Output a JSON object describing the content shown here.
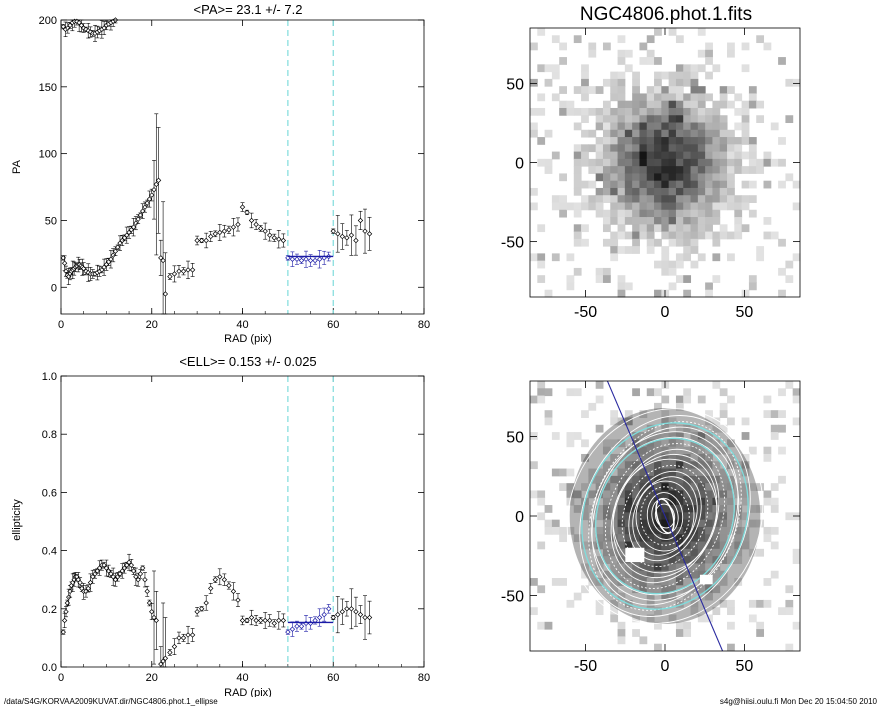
{
  "footer": {
    "path": "/data/S4G/KORVAA2009KUVAT.dir/NGC4806.phot.1_ellipse",
    "stamp": "s4g@hiisi.oulu.fi  Mon Dec 20 15:04:50 2010"
  },
  "colors": {
    "ink": "#000000",
    "cyan": "#7fdcdc",
    "blue": "#1a1aa6",
    "axis": "#000000"
  },
  "chart_data": [
    {
      "id": "pa",
      "type": "scatter",
      "title": "<PA>=  23.1 +/-   7.2",
      "xlabel": "RAD (pix)",
      "ylabel": "PA",
      "xlim": [
        0,
        80
      ],
      "ylim": [
        -20,
        200
      ],
      "xticks": [
        0,
        20,
        40,
        60,
        80
      ],
      "yticks": [
        0,
        50,
        100,
        150,
        200
      ],
      "vlines": [
        50,
        60
      ],
      "mean_line": {
        "x": [
          50,
          60
        ],
        "y": 23.1
      },
      "series": [
        {
          "name": "PA-low",
          "x": [
            0.5,
            0.8,
            1.1,
            1.4,
            1.7,
            2.0,
            2.3,
            2.6,
            2.9,
            3.2,
            3.5,
            3.8,
            4.1,
            4.4,
            4.7,
            5.0,
            5.5,
            6.0,
            6.5,
            7.0,
            7.5,
            8.0,
            8.5,
            9.0,
            9.5,
            10.0,
            10.5,
            11.0,
            11.5,
            12.0,
            12.5,
            13.0,
            13.5,
            14.0,
            14.5,
            15.0,
            15.5,
            16.0,
            16.5,
            17.0,
            17.5,
            18.0,
            18.5,
            19.0,
            19.5,
            20.0,
            20.5,
            21.0,
            21.5
          ],
          "y": [
            22,
            18,
            12,
            9,
            8,
            10,
            12,
            13,
            14,
            15,
            16,
            17,
            17,
            16,
            15,
            14,
            12,
            11,
            10,
            10,
            10,
            11,
            12,
            13,
            15,
            17,
            19,
            21,
            24,
            27,
            30,
            33,
            35,
            37,
            39,
            41,
            43,
            45,
            48,
            51,
            54,
            57,
            60,
            63,
            66,
            69,
            73,
            77,
            80
          ]
        },
        {
          "name": "PA-high",
          "x": [
            0.5,
            1,
            1.5,
            2,
            2.5,
            3,
            3.5,
            4,
            4.5,
            5,
            5.5,
            6,
            6.5,
            7,
            7.5,
            8,
            8.5,
            9,
            9.5,
            10,
            10.5,
            11,
            11.5,
            12
          ],
          "y": [
            195,
            193,
            194,
            196,
            198,
            199,
            199,
            198,
            196,
            194,
            193,
            192,
            191,
            190,
            190,
            191,
            192,
            193,
            194,
            196,
            197,
            198,
            199,
            200
          ]
        },
        {
          "name": "PA-mid",
          "x": [
            22,
            22.5,
            23,
            24,
            25,
            26,
            27,
            28,
            29,
            30,
            31,
            32,
            33,
            34,
            35,
            36,
            37,
            38,
            39,
            40,
            41,
            42,
            43,
            44,
            45,
            46,
            47,
            48,
            49
          ],
          "y": [
            22,
            20,
            -5,
            8,
            10,
            12,
            12,
            13,
            13,
            35,
            35,
            35,
            38,
            40,
            41,
            42,
            43,
            45,
            47,
            60,
            56,
            50,
            47,
            44,
            42,
            39,
            37,
            36,
            35
          ]
        },
        {
          "name": "PA-fit",
          "x": [
            50,
            51,
            52,
            53,
            54,
            55,
            56,
            57,
            58,
            59
          ],
          "y": [
            22,
            21,
            21,
            20,
            21,
            20,
            20,
            21,
            22,
            23
          ]
        },
        {
          "name": "PA-outer",
          "x": [
            60,
            61,
            62,
            63,
            64,
            65,
            66,
            67,
            68
          ],
          "y": [
            42,
            40,
            38,
            37,
            39,
            35,
            50,
            42,
            40
          ]
        }
      ]
    },
    {
      "id": "ell",
      "type": "scatter",
      "title": "<ELL>= 0.153 +/-  0.025",
      "xlabel": "RAD (pix)",
      "ylabel": "ellipticity",
      "xlim": [
        0,
        80
      ],
      "ylim": [
        0,
        1
      ],
      "xticks": [
        0,
        20,
        40,
        60,
        80
      ],
      "yticks": [
        0.0,
        0.2,
        0.4,
        0.6,
        0.8,
        1.0
      ],
      "vlines": [
        50,
        60
      ],
      "mean_line": {
        "x": [
          50,
          60
        ],
        "y": 0.153
      },
      "series": [
        {
          "name": "ELL-inner",
          "x": [
            0.5,
            0.8,
            1.1,
            1.4,
            1.7,
            2.0,
            2.3,
            2.6,
            2.9,
            3.2,
            3.5,
            3.8,
            4.2,
            4.6,
            5.0,
            5.5,
            6.0,
            6.5,
            7.0,
            7.5,
            8.0,
            8.5,
            9.0,
            9.5,
            10.0,
            10.5,
            11.0,
            11.5,
            12.0,
            12.5,
            13.0,
            13.5,
            14.0,
            14.5,
            15.0,
            15.5,
            16.0,
            16.5,
            17.0,
            17.5,
            18.0,
            18.5,
            19.0,
            19.5,
            20.0,
            20.5,
            21.0
          ],
          "y": [
            0.12,
            0.16,
            0.19,
            0.22,
            0.24,
            0.26,
            0.28,
            0.29,
            0.3,
            0.31,
            0.31,
            0.3,
            0.29,
            0.27,
            0.26,
            0.26,
            0.27,
            0.29,
            0.31,
            0.32,
            0.33,
            0.34,
            0.35,
            0.35,
            0.34,
            0.33,
            0.32,
            0.31,
            0.3,
            0.31,
            0.32,
            0.33,
            0.34,
            0.35,
            0.36,
            0.35,
            0.33,
            0.31,
            0.3,
            0.32,
            0.34,
            0.3,
            0.26,
            0.22,
            0.19,
            0.17,
            0.16
          ]
        },
        {
          "name": "ELL-mid",
          "x": [
            22,
            22.5,
            23,
            24,
            25,
            26,
            27,
            28,
            29,
            30,
            31,
            32,
            33,
            34,
            35,
            36,
            37,
            38,
            39,
            40,
            41,
            42,
            43,
            44,
            45,
            46,
            47,
            48,
            49
          ],
          "y": [
            0.01,
            0.02,
            0.03,
            0.05,
            0.07,
            0.1,
            0.1,
            0.11,
            0.11,
            0.19,
            0.2,
            0.22,
            0.27,
            0.3,
            0.31,
            0.3,
            0.28,
            0.26,
            0.23,
            0.16,
            0.16,
            0.17,
            0.16,
            0.16,
            0.16,
            0.16,
            0.15,
            0.16,
            0.16
          ]
        },
        {
          "name": "ELL-fit",
          "x": [
            50,
            51,
            52,
            53,
            54,
            55,
            56,
            57,
            58,
            59
          ],
          "y": [
            0.12,
            0.13,
            0.14,
            0.14,
            0.15,
            0.15,
            0.16,
            0.17,
            0.18,
            0.2
          ]
        },
        {
          "name": "ELL-outer",
          "x": [
            60,
            61,
            62,
            63,
            64,
            65,
            66,
            67,
            68
          ],
          "y": [
            0.17,
            0.18,
            0.19,
            0.2,
            0.2,
            0.19,
            0.18,
            0.17,
            0.17
          ]
        }
      ]
    },
    {
      "id": "img1",
      "type": "heatmap",
      "title": "NGC4806.phot.1.fits",
      "xlim": [
        -85,
        85
      ],
      "ylim": [
        -85,
        85
      ],
      "xticks": [
        -50,
        0,
        50
      ],
      "yticks": [
        -50,
        0,
        50
      ]
    },
    {
      "id": "img2",
      "type": "heatmap",
      "title": "",
      "xlim": [
        -85,
        85
      ],
      "ylim": [
        -85,
        85
      ],
      "xticks": [
        -50,
        0,
        50
      ],
      "yticks": [
        -50,
        0,
        50
      ],
      "pa_line_deg": 23.1
    }
  ]
}
